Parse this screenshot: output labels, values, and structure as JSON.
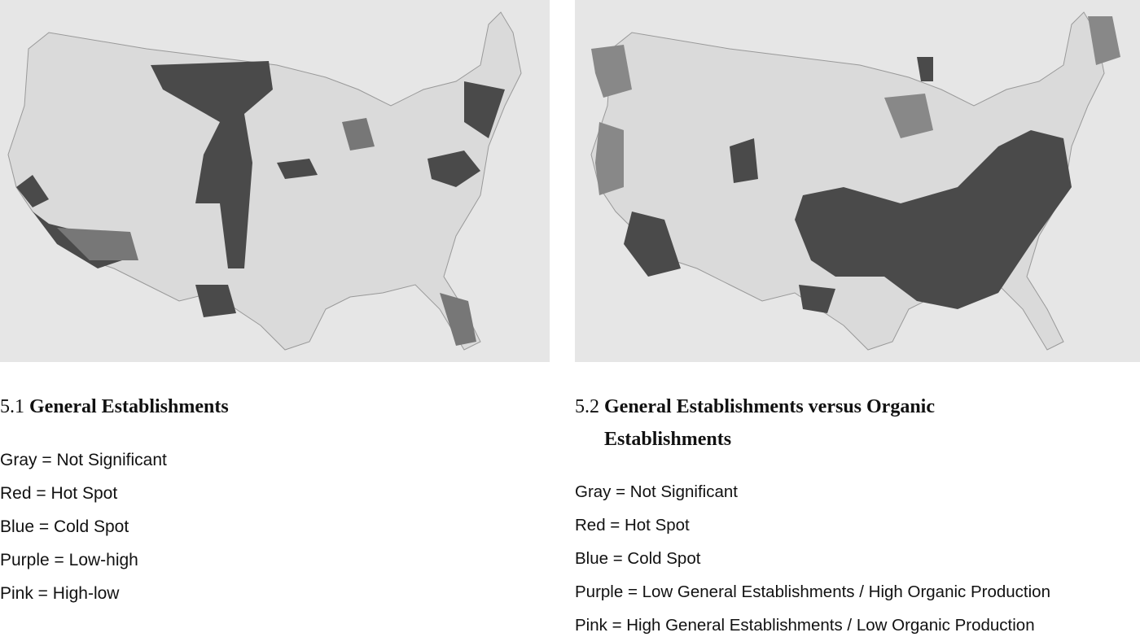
{
  "panels": [
    {
      "number": "5.1",
      "title": "General Establishments",
      "legend": [
        "Gray = Not Significant",
        "Red = Hot Spot",
        "Blue = Cold Spot",
        "Purple = Low-high",
        "Pink = High-low"
      ]
    },
    {
      "number": "5.2",
      "title": "General Establishments versus Organic Establishments",
      "legend": [
        "Gray = Not Significant",
        "Red = Hot Spot",
        "Blue = Cold Spot",
        "Purple = Low General Establishments / High Organic Production",
        "Pink = High General Establishments / Low Organic Production"
      ]
    }
  ]
}
